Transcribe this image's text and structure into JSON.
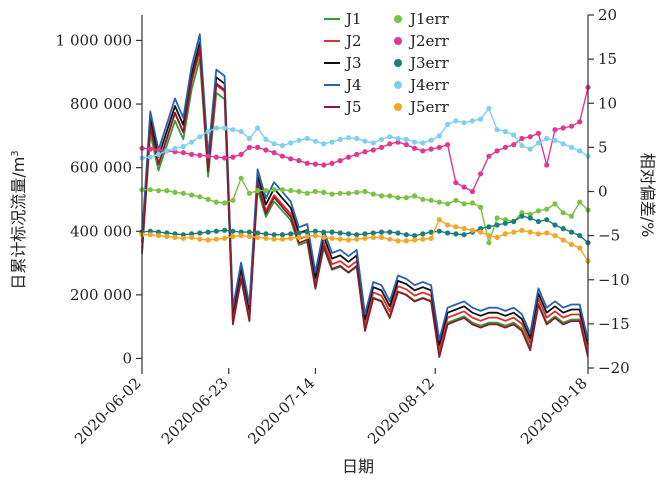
{
  "chart_data": {
    "type": "line",
    "xlabel": "日期",
    "ylabel": "日累计标况流量/m³",
    "ylabel_parts": [
      "日累计标况流量/m",
      "3"
    ],
    "y2label": "相对偏差/%",
    "x_ticks": [
      "2020-06-02",
      "2020-06-23",
      "2020-07-14",
      "2020-08-12",
      "2020-09-18"
    ],
    "y_ticks": [
      0,
      200000,
      400000,
      600000,
      800000,
      1000000
    ],
    "y_tick_labels": [
      "0",
      "200 000",
      "400 000",
      "600 000",
      "800 000",
      "1 000 000"
    ],
    "y2_ticks": [
      20,
      15,
      10,
      5,
      0,
      -5,
      -10,
      -15,
      -20
    ],
    "y2_tick_labels": [
      "20",
      "15",
      "10",
      "5",
      "0",
      "−5",
      "−10",
      "−15",
      "−20"
    ],
    "xlim": [
      "2020-06-02",
      "2020-09-18"
    ],
    "ylim": [
      -30000,
      1080000
    ],
    "y2lim": [
      -20,
      20
    ],
    "legend_position": "top-center",
    "series_flow": [
      {
        "name": "J1",
        "color": "#3a9a3a"
      },
      {
        "name": "J2",
        "color": "#e03030"
      },
      {
        "name": "J3",
        "color": "#111111"
      },
      {
        "name": "J4",
        "color": "#2b5fb0"
      },
      {
        "name": "J5",
        "color": "#8b1a2b"
      }
    ],
    "series_err": [
      {
        "name": "J1err",
        "color": "#7cc242"
      },
      {
        "name": "J2err",
        "color": "#e0388f"
      },
      {
        "name": "J3err",
        "color": "#1a7f7a"
      },
      {
        "name": "J4err",
        "color": "#7fd0f0"
      },
      {
        "name": "J5err",
        "color": "#f5a623"
      }
    ],
    "x": [
      "2020-06-02",
      "2020-06-04",
      "2020-06-06",
      "2020-06-08",
      "2020-06-10",
      "2020-06-12",
      "2020-06-14",
      "2020-06-16",
      "2020-06-18",
      "2020-06-20",
      "2020-06-22",
      "2020-06-24",
      "2020-06-26",
      "2020-06-28",
      "2020-06-30",
      "2020-07-02",
      "2020-07-04",
      "2020-07-06",
      "2020-07-08",
      "2020-07-10",
      "2020-07-12",
      "2020-07-14",
      "2020-07-16",
      "2020-07-18",
      "2020-07-20",
      "2020-07-22",
      "2020-07-24",
      "2020-07-26",
      "2020-07-28",
      "2020-07-30",
      "2020-08-01",
      "2020-08-03",
      "2020-08-05",
      "2020-08-07",
      "2020-08-09",
      "2020-08-11",
      "2020-08-13",
      "2020-08-15",
      "2020-08-17",
      "2020-08-19",
      "2020-08-21",
      "2020-08-23",
      "2020-08-25",
      "2020-08-27",
      "2020-08-29",
      "2020-08-31",
      "2020-09-02",
      "2020-09-04",
      "2020-09-06",
      "2020-09-08",
      "2020-09-10",
      "2020-09-12",
      "2020-09-14",
      "2020-09-16",
      "2020-09-18"
    ],
    "flow_values": [
      350000,
      740000,
      620000,
      700000,
      780000,
      720000,
      880000,
      980000,
      600000,
      870000,
      850000,
      130000,
      270000,
      140000,
      560000,
      470000,
      520000,
      490000,
      460000,
      380000,
      390000,
      240000,
      370000,
      300000,
      310000,
      290000,
      310000,
      110000,
      210000,
      200000,
      150000,
      230000,
      220000,
      200000,
      210000,
      200000,
      30000,
      130000,
      140000,
      150000,
      130000,
      120000,
      130000,
      130000,
      120000,
      130000,
      110000,
      50000,
      190000,
      130000,
      150000,
      130000,
      140000,
      140000,
      30000
    ],
    "err_values": {
      "J1err": [
        0.2,
        0.2,
        0.1,
        0.1,
        -0.1,
        -0.2,
        -0.4,
        -0.6,
        -0.9,
        -1.2,
        -1.3,
        -1.0,
        1.5,
        -0.2,
        0.1,
        0.1,
        0.2,
        0.2,
        0.1,
        0.0,
        -0.2,
        0.0,
        -0.1,
        -0.3,
        -0.2,
        -0.2,
        -0.1,
        0.0,
        -0.3,
        -0.5,
        -0.5,
        -0.7,
        -0.7,
        -0.5,
        -0.9,
        -1.0,
        -1.2,
        -1.4,
        -1.0,
        -1.4,
        -1.3,
        -1.8,
        -5.8,
        -3.0,
        -3.2,
        -3.4,
        -2.4,
        -2.6,
        -2.2,
        -2.0,
        -1.4,
        -2.4,
        -2.8,
        -1.2,
        -2.1
      ],
      "J2err": [
        4.9,
        4.8,
        4.7,
        4.6,
        4.5,
        4.4,
        4.2,
        4.1,
        4.0,
        3.9,
        3.8,
        3.9,
        4.2,
        5.0,
        5.0,
        4.7,
        4.4,
        4.0,
        3.7,
        3.5,
        3.2,
        3.1,
        3.0,
        3.2,
        3.5,
        3.9,
        4.2,
        4.5,
        4.7,
        5.0,
        5.4,
        5.6,
        5.3,
        4.9,
        4.6,
        4.8,
        5.0,
        5.3,
        1.0,
        0.5,
        0.0,
        2.0,
        4.0,
        4.6,
        5.0,
        5.3,
        6.0,
        6.2,
        6.6,
        3.0,
        7.0,
        7.2,
        7.4,
        7.9,
        11.8
      ],
      "J3err": [
        -4.6,
        -4.5,
        -4.6,
        -4.7,
        -4.8,
        -4.9,
        -4.8,
        -4.7,
        -4.6,
        -4.5,
        -4.4,
        -4.5,
        -4.6,
        -4.6,
        -4.7,
        -4.8,
        -4.9,
        -4.9,
        -4.8,
        -4.7,
        -4.6,
        -4.5,
        -4.6,
        -4.6,
        -4.7,
        -4.8,
        -4.9,
        -4.8,
        -4.7,
        -4.6,
        -4.6,
        -4.7,
        -4.9,
        -5.0,
        -4.8,
        -4.6,
        -4.5,
        -4.7,
        -4.8,
        -4.9,
        -4.6,
        -4.2,
        -4.0,
        -3.8,
        -3.6,
        -3.4,
        -2.8,
        -3.0,
        -3.4,
        -3.2,
        -3.8,
        -4.2,
        -4.6,
        -5.0,
        -5.8
      ],
      "J4err": [
        3.8,
        3.9,
        4.2,
        4.6,
        4.9,
        5.1,
        5.6,
        6.2,
        6.8,
        7.2,
        7.2,
        7.0,
        6.8,
        6.0,
        7.2,
        5.9,
        5.4,
        5.2,
        5.5,
        5.8,
        6.0,
        5.7,
        5.4,
        5.6,
        5.9,
        6.1,
        6.0,
        5.7,
        5.5,
        5.9,
        6.2,
        6.0,
        5.9,
        5.6,
        5.5,
        5.8,
        6.3,
        7.6,
        8.0,
        7.8,
        8.0,
        8.2,
        9.4,
        7.0,
        6.8,
        6.4,
        5.2,
        4.8,
        5.5,
        6.0,
        5.8,
        5.4,
        5.0,
        4.6,
        4.0
      ],
      "J5err": [
        -4.9,
        -4.9,
        -5.0,
        -5.1,
        -5.2,
        -5.3,
        -5.2,
        -5.4,
        -5.5,
        -5.4,
        -5.3,
        -5.1,
        -5.0,
        -5.1,
        -5.2,
        -5.3,
        -5.4,
        -5.4,
        -5.3,
        -5.2,
        -5.1,
        -5.0,
        -5.2,
        -5.3,
        -5.4,
        -5.5,
        -5.4,
        -5.3,
        -5.2,
        -5.2,
        -5.4,
        -5.6,
        -5.6,
        -5.5,
        -5.4,
        -5.3,
        -3.2,
        -3.8,
        -4.0,
        -4.2,
        -4.4,
        -4.6,
        -5.0,
        -5.2,
        -4.8,
        -4.6,
        -4.4,
        -4.6,
        -4.8,
        -4.7,
        -5.0,
        -5.5,
        -6.0,
        -6.4,
        -7.9
      ]
    }
  }
}
